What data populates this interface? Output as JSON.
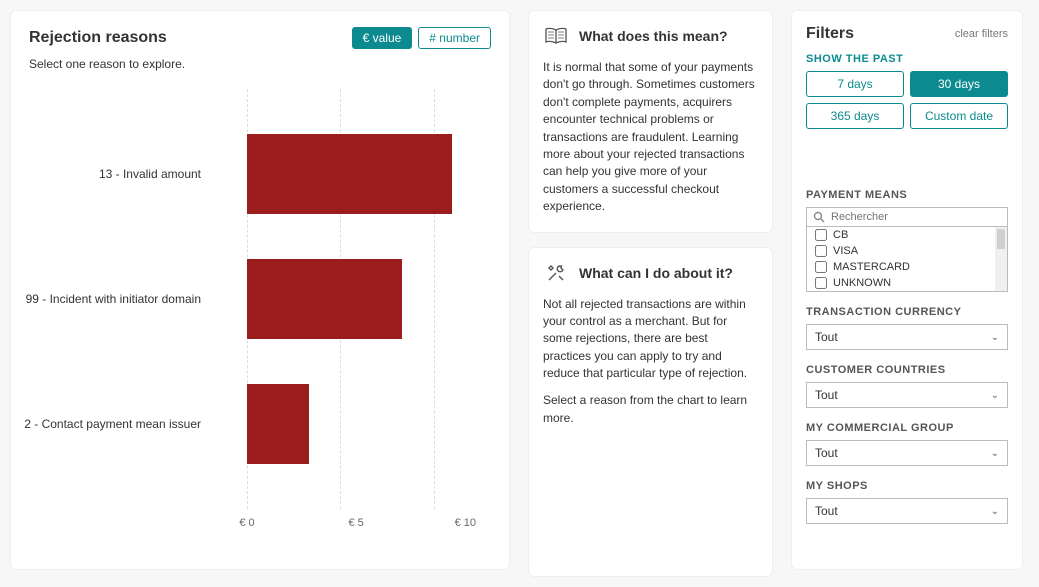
{
  "left": {
    "title": "Rejection reasons",
    "subtitle": "Select one reason to explore.",
    "toggles": {
      "value_label": "€ value",
      "number_label": "# number",
      "active": "value"
    },
    "chart": {
      "type": "bar-horizontal",
      "x_axis": {
        "min": 0,
        "max": 12,
        "ticks": [
          0,
          5,
          10
        ],
        "tick_prefix": "€ "
      },
      "bar_color": "#9b1c1c",
      "grid_color": "#dddddd",
      "bars": [
        {
          "label": "13 - Invalid amount",
          "value": 11
        },
        {
          "label": "99 - Incident with initiator domain",
          "value": 8.3
        },
        {
          "label": "2 - Contact payment mean issuer",
          "value": 3.3
        }
      ]
    }
  },
  "info": {
    "mean": {
      "title": "What does this mean?",
      "body": "It is normal that some of your payments don't go through. Sometimes customers don't complete payments, acquirers encounter technical problems or transactions are fraudulent. Learning more about your rejected transactions can help you give more of your customers a successful checkout experience."
    },
    "do": {
      "title": "What can I do about it?",
      "body1": "Not all rejected transactions are within your control as a merchant. But for some rejections, there are best practices you can apply to try and reduce that particular type of rejection.",
      "body2": "Select a reason from the chart to learn more."
    }
  },
  "filters": {
    "title": "Filters",
    "clear": "clear filters",
    "past_label": "SHOW THE PAST",
    "periods": [
      {
        "label": "7 days",
        "active": false
      },
      {
        "label": "30 days",
        "active": true
      },
      {
        "label": "365 days",
        "active": false
      },
      {
        "label": "Custom date",
        "active": false
      }
    ],
    "pm_label": "PAYMENT MEANS",
    "search_placeholder": "Rechercher",
    "payment_means": [
      "CB",
      "VISA",
      "MASTERCARD",
      "UNKNOWN"
    ],
    "currency_label": "TRANSACTION CURRENCY",
    "countries_label": "CUSTOMER COUNTRIES",
    "group_label": "MY COMMERCIAL GROUP",
    "shops_label": "MY SHOPS",
    "select_value": "Tout"
  },
  "colors": {
    "teal": "#0b8b8f",
    "bar": "#9b1c1c",
    "panel_bg": "#ffffff",
    "page_bg": "#f7f7f7"
  }
}
